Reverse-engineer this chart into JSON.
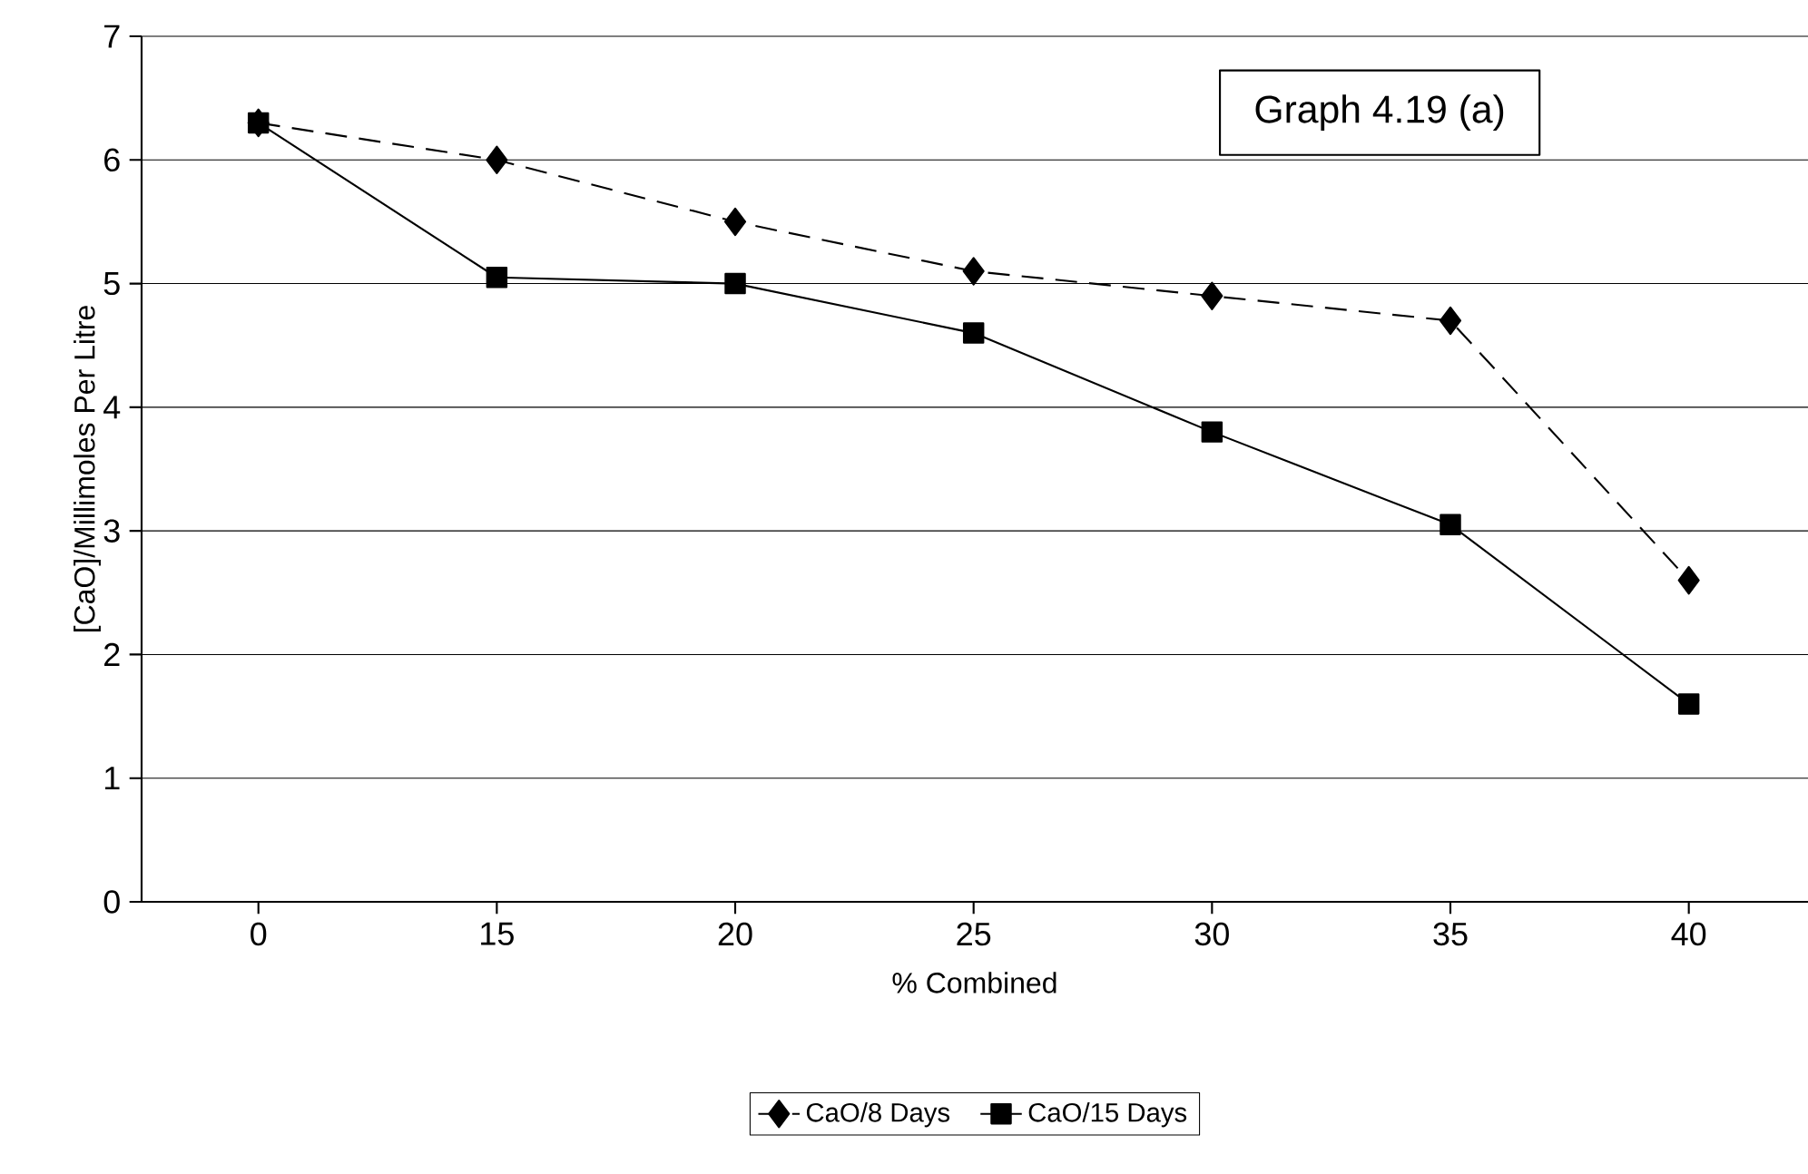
{
  "chart_data": {
    "type": "line",
    "title": "Graph 4.19 (a)",
    "xlabel": "% Combined",
    "ylabel": "[CaO]/Millimoles Per Litre",
    "categories": [
      "0",
      "15",
      "20",
      "25",
      "30",
      "35",
      "40"
    ],
    "series": [
      {
        "name": "CaO/8 Days",
        "color": "#000000",
        "marker": "diamond",
        "line_style": "dashed",
        "values": [
          6.3,
          6.0,
          5.5,
          5.1,
          4.9,
          4.7,
          2.6
        ]
      },
      {
        "name": "CaO/15 Days",
        "color": "#000000",
        "marker": "square",
        "line_style": "solid",
        "values": [
          6.3,
          5.05,
          5.0,
          4.6,
          3.8,
          3.05,
          1.6
        ]
      }
    ],
    "ylim": [
      0,
      7
    ],
    "yticks": [
      0,
      1,
      2,
      3,
      4,
      5,
      6,
      7
    ],
    "grid": "y",
    "legend": "bottom"
  }
}
